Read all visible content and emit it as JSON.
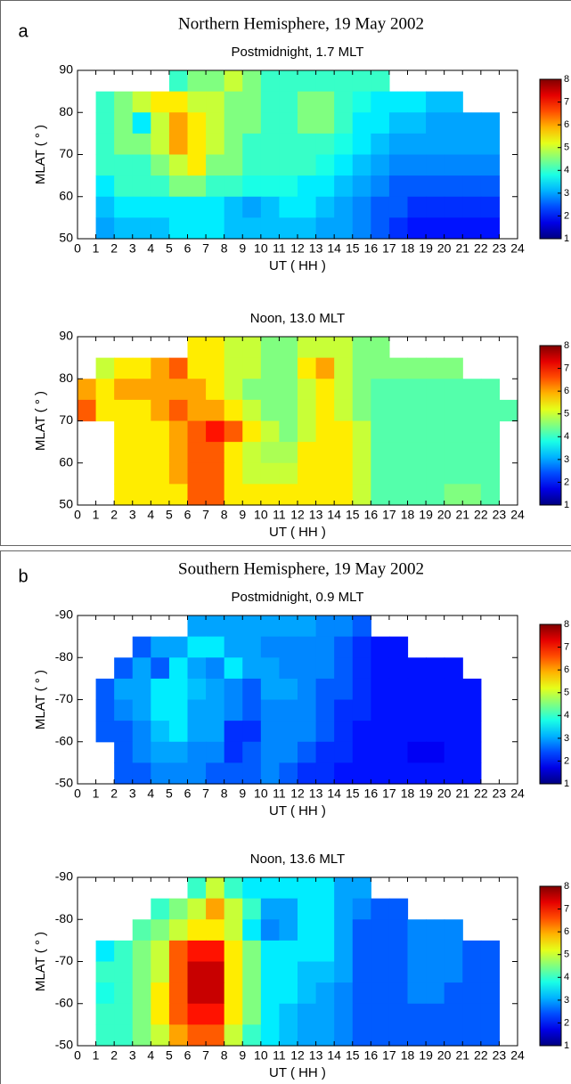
{
  "figure_panels": [
    {
      "label": "a",
      "title": "Northern Hemisphere, 19 May 2002"
    },
    {
      "label": "b",
      "title": "Southern Hemisphere, 19 May 2002"
    }
  ],
  "chart_data": [
    {
      "type": "heatmap",
      "title": "Postmidnight, 1.7 MLT",
      "xlabel": "UT ( HH )",
      "ylabel": "MLAT ( ° )",
      "colormap": "jet",
      "clim": [
        1,
        8
      ],
      "cticks": [
        1,
        2,
        3,
        4,
        5,
        6,
        7,
        8
      ],
      "xlim": [
        0,
        24
      ],
      "xticks": [
        0,
        1,
        2,
        3,
        4,
        5,
        6,
        7,
        8,
        9,
        10,
        11,
        12,
        13,
        14,
        15,
        16,
        17,
        18,
        19,
        20,
        21,
        22,
        23,
        24
      ],
      "ylim": [
        50,
        90
      ],
      "yticks": [
        50,
        60,
        70,
        80,
        90
      ],
      "xbins": [
        0,
        1,
        2,
        3,
        4,
        5,
        6,
        7,
        8,
        9,
        10,
        11,
        12,
        13,
        14,
        15,
        16,
        17,
        18,
        19,
        20,
        21,
        22,
        23,
        24
      ],
      "ybins": [
        90,
        85,
        80,
        75,
        70,
        65,
        60,
        55,
        50
      ],
      "z": [
        [
          null,
          null,
          null,
          null,
          null,
          4,
          4.5,
          4.5,
          5,
          4.5,
          4,
          4,
          4,
          4,
          4,
          4,
          4,
          null,
          null,
          null,
          null,
          null,
          null,
          null
        ],
        [
          null,
          4,
          4.5,
          5,
          5.5,
          5.5,
          5,
          5,
          4.5,
          4.5,
          4,
          4,
          4.5,
          4.5,
          4,
          3.8,
          3.5,
          3.5,
          3.5,
          3.2,
          3.2,
          null,
          null,
          null
        ],
        [
          null,
          4,
          4.5,
          3.5,
          5,
          6,
          5.5,
          5,
          4.5,
          4.5,
          4,
          4,
          4.5,
          4.5,
          4,
          3.5,
          3.5,
          3.2,
          3.2,
          3,
          3,
          3,
          3,
          null
        ],
        [
          null,
          4,
          4.5,
          4.5,
          5,
          6,
          5.5,
          5,
          4.5,
          4,
          4,
          4,
          4,
          4,
          3.8,
          3.5,
          3.2,
          3,
          3,
          3,
          3,
          3,
          3,
          null
        ],
        [
          null,
          4,
          4,
          4,
          4.5,
          5,
          5.5,
          4.5,
          4.5,
          4,
          4,
          4,
          4,
          3.8,
          3.5,
          3.2,
          3,
          2.8,
          2.8,
          2.8,
          2.8,
          2.8,
          2.8,
          null
        ],
        [
          null,
          3.5,
          4,
          4,
          4,
          4.5,
          4.5,
          4,
          4,
          3.8,
          3.8,
          3.8,
          3.5,
          3.5,
          3.2,
          3,
          2.8,
          2.5,
          2.5,
          2.5,
          2.5,
          2.5,
          2.5,
          null
        ],
        [
          null,
          3.2,
          3.5,
          3.5,
          3.5,
          3.5,
          3.5,
          3.5,
          3.2,
          3,
          3.2,
          3.5,
          3.5,
          3.2,
          3,
          2.8,
          2.5,
          2.5,
          2.2,
          2.2,
          2.2,
          2.2,
          2.2,
          null
        ],
        [
          null,
          3,
          3.2,
          3.2,
          3.2,
          3.5,
          3.5,
          3.5,
          3.2,
          3.2,
          3.2,
          3.2,
          3.2,
          3,
          3,
          2.8,
          2.5,
          2.2,
          2,
          2,
          2,
          2,
          2,
          null
        ]
      ]
    },
    {
      "type": "heatmap",
      "title": "Noon, 13.0 MLT",
      "xlabel": "UT ( HH )",
      "ylabel": "MLAT ( ° )",
      "colormap": "jet",
      "clim": [
        1,
        8
      ],
      "cticks": [
        1,
        2,
        3,
        4,
        5,
        6,
        7,
        8
      ],
      "xlim": [
        0,
        24
      ],
      "xticks": [
        0,
        1,
        2,
        3,
        4,
        5,
        6,
        7,
        8,
        9,
        10,
        11,
        12,
        13,
        14,
        15,
        16,
        17,
        18,
        19,
        20,
        21,
        22,
        23,
        24
      ],
      "ylim": [
        50,
        90
      ],
      "yticks": [
        50,
        60,
        70,
        80,
        90
      ],
      "xbins": [
        0,
        1,
        2,
        3,
        4,
        5,
        6,
        7,
        8,
        9,
        10,
        11,
        12,
        13,
        14,
        15,
        16,
        17,
        18,
        19,
        20,
        21,
        22,
        23,
        24
      ],
      "ybins": [
        90,
        85,
        80,
        75,
        70,
        65,
        60,
        55,
        50
      ],
      "z": [
        [
          null,
          null,
          null,
          null,
          null,
          null,
          5.5,
          5.5,
          5,
          5,
          4.5,
          4.5,
          5,
          5,
          5,
          4.5,
          4.5,
          null,
          null,
          null,
          null,
          null,
          null,
          null
        ],
        [
          null,
          5,
          5.5,
          5.5,
          6,
          6.5,
          5.5,
          5.5,
          5,
          5,
          4.5,
          4.5,
          5.5,
          6,
          5,
          4.5,
          4.5,
          4.5,
          4.5,
          4.5,
          4.5,
          null,
          null,
          null
        ],
        [
          6,
          5.5,
          6,
          6,
          6,
          6,
          6,
          5.5,
          5,
          4.5,
          4.5,
          4.5,
          5,
          5.5,
          5,
          4.5,
          4.2,
          4.2,
          4.2,
          4.2,
          4.2,
          4.2,
          4.2,
          null
        ],
        [
          6.5,
          5.5,
          5.5,
          5.5,
          6,
          6.5,
          6,
          6,
          5.5,
          5,
          4.5,
          4.5,
          5,
          5.5,
          5,
          4.5,
          4.2,
          4.2,
          4.2,
          4.2,
          4.2,
          4.2,
          4.2,
          4.2
        ],
        [
          null,
          null,
          5.5,
          5.5,
          5.5,
          6,
          6.5,
          7,
          6.5,
          5.5,
          5,
          4.5,
          5,
          5.5,
          5.5,
          5,
          4.2,
          4.2,
          4.2,
          4.2,
          4.2,
          4.2,
          4.2,
          null
        ],
        [
          null,
          null,
          5.5,
          5.5,
          5.5,
          6,
          6.5,
          6.5,
          5.5,
          5,
          4.8,
          4.8,
          5.5,
          5.5,
          5.5,
          5,
          4.2,
          4.2,
          4.2,
          4.2,
          4.2,
          4.2,
          4.2,
          null
        ],
        [
          null,
          null,
          5.5,
          5.5,
          5.5,
          6,
          6.5,
          6.5,
          5.5,
          5,
          5,
          5,
          5.5,
          5.5,
          5.5,
          5,
          4.2,
          4.2,
          4.2,
          4.2,
          4.2,
          4.2,
          4.2,
          null
        ],
        [
          null,
          null,
          5.5,
          5.5,
          5.5,
          5.5,
          6.5,
          6.5,
          5.5,
          5.5,
          5.5,
          5.5,
          5.5,
          5.5,
          5.5,
          5,
          4.2,
          4.2,
          4.2,
          4.2,
          4.5,
          4.5,
          4.2,
          null
        ]
      ]
    },
    {
      "type": "heatmap",
      "title": "Postmidnight, 0.9 MLT",
      "xlabel": "UT ( HH )",
      "ylabel": "MLAT ( ° )",
      "colormap": "jet",
      "clim": [
        1,
        8
      ],
      "cticks": [
        1,
        2,
        3,
        4,
        5,
        6,
        7,
        8
      ],
      "xlim": [
        0,
        24
      ],
      "xticks": [
        0,
        1,
        2,
        3,
        4,
        5,
        6,
        7,
        8,
        9,
        10,
        11,
        12,
        13,
        14,
        15,
        16,
        17,
        18,
        19,
        20,
        21,
        22,
        23,
        24
      ],
      "ylim": [
        -50,
        -90
      ],
      "yticks": [
        -50,
        -60,
        -70,
        -80,
        -90
      ],
      "xbins": [
        0,
        1,
        2,
        3,
        4,
        5,
        6,
        7,
        8,
        9,
        10,
        11,
        12,
        13,
        14,
        15,
        16,
        17,
        18,
        19,
        20,
        21,
        22,
        23,
        24
      ],
      "ybins": [
        -90,
        -85,
        -80,
        -75,
        -70,
        -65,
        -60,
        -55,
        -50
      ],
      "z": [
        [
          null,
          null,
          null,
          null,
          null,
          null,
          3,
          3,
          3,
          3,
          3,
          3,
          3,
          2.8,
          2.8,
          2.5,
          null,
          null,
          null,
          null,
          null,
          null,
          null,
          null
        ],
        [
          null,
          null,
          null,
          2.5,
          3,
          3,
          3.5,
          3.5,
          3,
          3,
          2.8,
          2.8,
          2.8,
          2.8,
          2.5,
          2.2,
          2,
          2,
          null,
          null,
          null,
          null,
          null,
          null
        ],
        [
          null,
          null,
          2.5,
          3,
          2.5,
          3.5,
          3,
          2.8,
          3.5,
          3,
          3,
          2.8,
          2.8,
          2.8,
          2.5,
          2.2,
          2,
          2,
          2,
          2,
          2,
          null,
          null,
          null
        ],
        [
          null,
          2.5,
          3,
          3,
          3.5,
          3.5,
          3.2,
          3,
          2.8,
          2.5,
          3,
          3,
          2.8,
          2.5,
          2.5,
          2.2,
          2,
          2,
          2,
          2,
          2,
          2,
          null,
          null
        ],
        [
          null,
          2.5,
          2.8,
          3,
          3.5,
          3.5,
          3,
          3,
          2.8,
          2.5,
          2.8,
          2.8,
          2.8,
          2.5,
          2.2,
          2.2,
          2,
          2,
          2,
          2,
          2,
          2,
          null,
          null
        ],
        [
          null,
          2.5,
          2.5,
          2.8,
          3.2,
          3.5,
          3,
          3,
          2.2,
          2.2,
          2.8,
          2.8,
          2.8,
          2.5,
          2.2,
          2,
          2,
          2,
          2,
          2,
          2,
          2,
          null,
          null
        ],
        [
          null,
          null,
          2.5,
          2.8,
          3,
          3,
          2.8,
          2.8,
          2.2,
          2.5,
          2.8,
          2.8,
          2.5,
          2.2,
          2.2,
          2,
          2,
          2,
          1.8,
          1.8,
          2,
          2,
          null,
          null
        ],
        [
          null,
          null,
          2.5,
          2.5,
          2.8,
          2.8,
          2.8,
          2.5,
          2.5,
          2.5,
          2.8,
          2.5,
          2.2,
          2.2,
          2,
          2,
          2,
          2,
          2,
          2,
          2,
          2,
          null,
          null
        ]
      ]
    },
    {
      "type": "heatmap",
      "title": "Noon, 13.6 MLT",
      "xlabel": "UT ( HH )",
      "ylabel": "MLAT ( ° )",
      "colormap": "jet",
      "clim": [
        1,
        8
      ],
      "cticks": [
        1,
        2,
        3,
        4,
        5,
        6,
        7,
        8
      ],
      "xlim": [
        0,
        24
      ],
      "xticks": [
        0,
        1,
        2,
        3,
        4,
        5,
        6,
        7,
        8,
        9,
        10,
        11,
        12,
        13,
        14,
        15,
        16,
        17,
        18,
        19,
        20,
        21,
        22,
        23,
        24
      ],
      "ylim": [
        -50,
        -90
      ],
      "yticks": [
        -50,
        -60,
        -70,
        -80,
        -90
      ],
      "xbins": [
        0,
        1,
        2,
        3,
        4,
        5,
        6,
        7,
        8,
        9,
        10,
        11,
        12,
        13,
        14,
        15,
        16,
        17,
        18,
        19,
        20,
        21,
        22,
        23,
        24
      ],
      "ybins": [
        -90,
        -85,
        -80,
        -75,
        -70,
        -65,
        -60,
        -55,
        -50
      ],
      "z": [
        [
          null,
          null,
          null,
          null,
          null,
          null,
          4,
          5,
          4,
          3.5,
          3.5,
          3.5,
          3.5,
          3.5,
          3,
          3,
          null,
          null,
          null,
          null,
          null,
          null,
          null,
          null
        ],
        [
          null,
          null,
          null,
          null,
          4,
          4.5,
          5,
          6,
          5,
          4,
          3,
          3,
          3.5,
          3.5,
          3,
          2.8,
          2.5,
          2.5,
          null,
          null,
          null,
          null,
          null,
          null
        ],
        [
          null,
          null,
          null,
          4.2,
          4.5,
          5,
          5.5,
          5.5,
          5,
          3.5,
          2.8,
          3,
          3.5,
          3.5,
          3,
          2.5,
          2.5,
          2.5,
          2.8,
          2.8,
          2.8,
          null,
          null,
          null
        ],
        [
          null,
          3.5,
          4,
          4.5,
          5,
          6.5,
          7,
          7,
          5.5,
          4.5,
          3.5,
          3.5,
          3.5,
          3.5,
          3,
          2.5,
          2.5,
          2.5,
          2.8,
          2.8,
          2.8,
          2.5,
          2.5,
          null
        ],
        [
          null,
          4,
          4,
          4.5,
          5,
          6.5,
          7.5,
          7.5,
          5.5,
          4.5,
          3.5,
          3.5,
          3.2,
          3.2,
          3,
          2.5,
          2.5,
          2.5,
          2.8,
          2.8,
          2.8,
          2.5,
          2.5,
          null
        ],
        [
          null,
          3.8,
          4,
          4.5,
          5.5,
          6.5,
          7.5,
          7.5,
          5.5,
          4.5,
          3.5,
          3.5,
          3.2,
          3,
          2.8,
          2.5,
          2.5,
          2.5,
          2.8,
          2.8,
          2.5,
          2.5,
          2.5,
          null
        ],
        [
          null,
          4,
          4,
          4.5,
          5.5,
          6.5,
          7,
          7,
          5.5,
          4.5,
          3.5,
          3.2,
          3,
          3,
          2.8,
          2.5,
          2.5,
          2.5,
          2.5,
          2.5,
          2.5,
          2.5,
          2.5,
          null
        ],
        [
          null,
          4,
          4,
          4.5,
          5,
          6,
          6.5,
          6.5,
          5,
          4,
          3.5,
          3.2,
          3,
          3,
          2.8,
          2.5,
          2.5,
          2.5,
          2.5,
          2.5,
          2.5,
          2.5,
          2.5,
          null
        ]
      ]
    }
  ]
}
